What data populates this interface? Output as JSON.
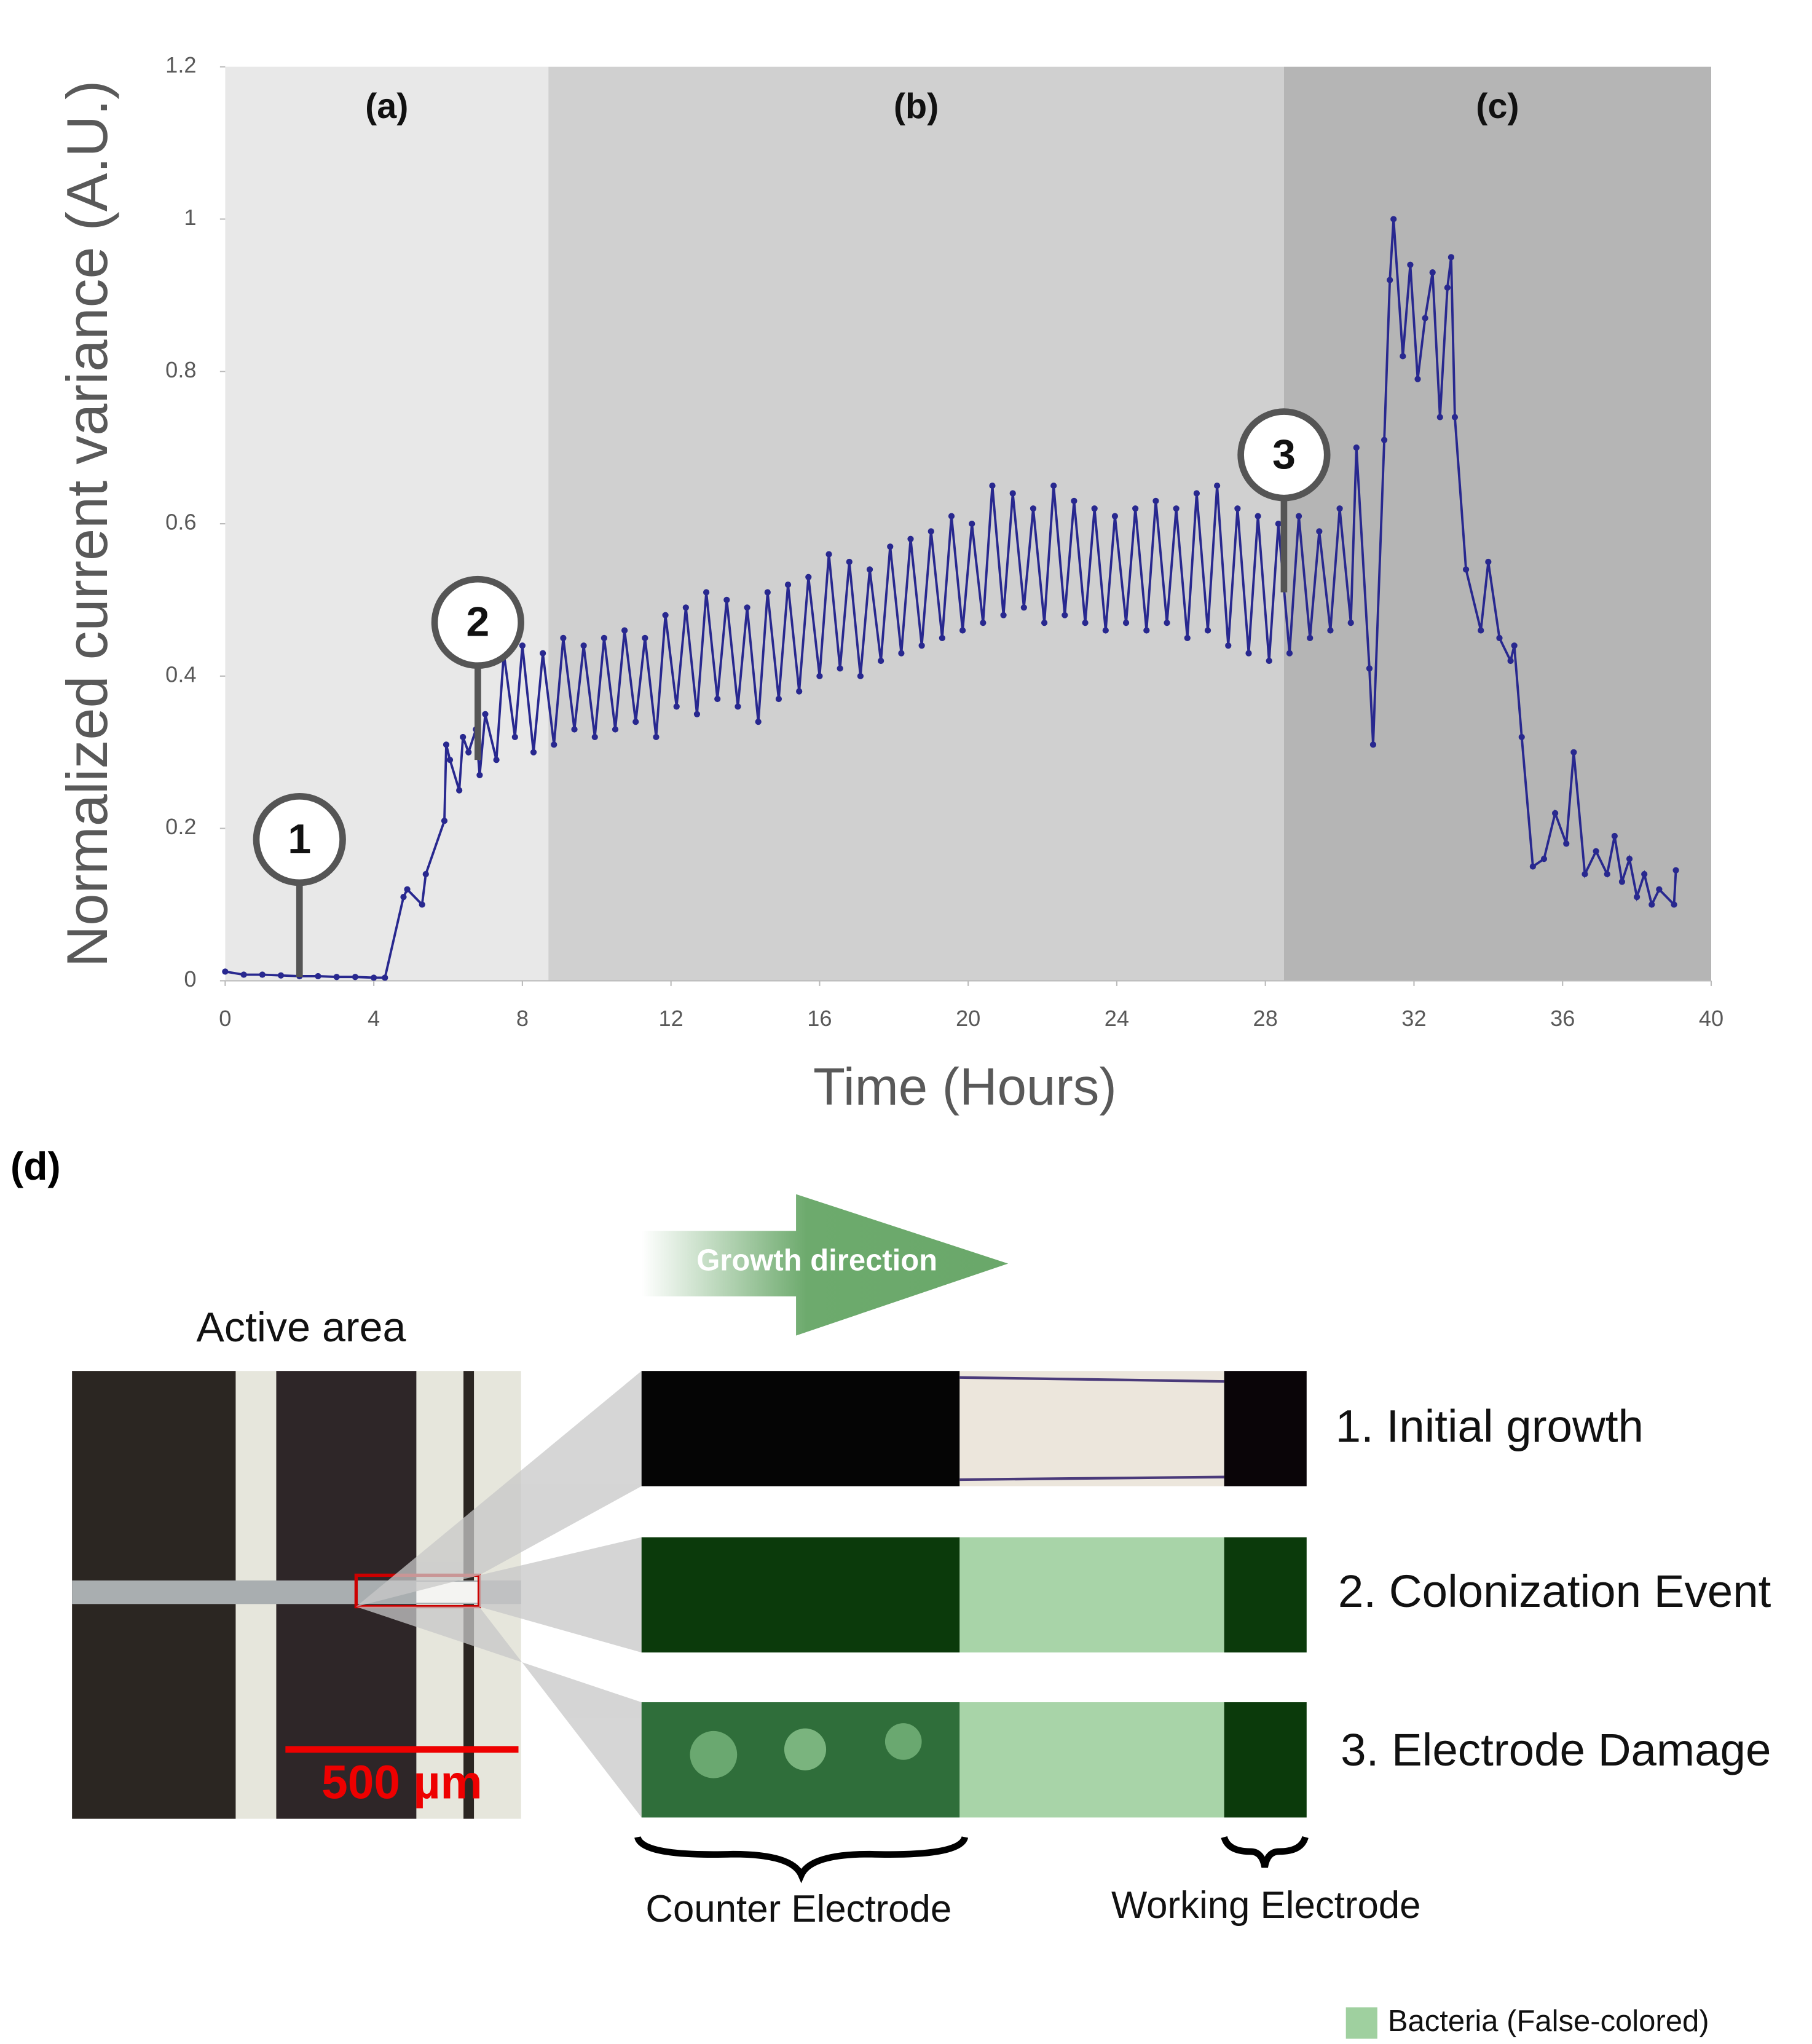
{
  "chart_data": {
    "type": "line",
    "x_label": "Time (Hours)",
    "y_label": "Normalized current variance (A.U.)",
    "xlim": [
      0,
      40
    ],
    "xticks": [
      0,
      4,
      8,
      12,
      16,
      20,
      24,
      28,
      32,
      36,
      40
    ],
    "ylim": [
      0,
      1.2
    ],
    "yticks": [
      0,
      0.2,
      0.4,
      0.6,
      0.8,
      1,
      1.2
    ],
    "regions": [
      {
        "label": "(a)",
        "x0": 0,
        "x1": 8.7,
        "color": "#e8e8e8"
      },
      {
        "label": "(b)",
        "x0": 8.7,
        "x1": 28.5,
        "color": "#d0d0d0"
      },
      {
        "label": "(c)",
        "x0": 28.5,
        "x1": 40,
        "color": "#b5b5b5"
      }
    ],
    "annotations": [
      {
        "label": "1",
        "x": 2,
        "y": 0.005
      },
      {
        "label": "2",
        "x": 6.8,
        "y": 0.29
      },
      {
        "label": "3",
        "x": 28.5,
        "y": 0.51
      }
    ],
    "x": [
      0,
      0.5,
      1,
      1.5,
      2,
      2.5,
      3,
      3.5,
      4,
      4.3,
      4.8,
      4.9,
      5.3,
      5.4,
      5.9,
      5.95,
      6.05,
      6.3,
      6.4,
      6.55,
      6.75,
      6.85,
      7.0,
      7.3,
      7.5,
      7.8,
      8.0,
      8.3,
      8.55,
      8.85,
      9.1,
      9.4,
      9.65,
      9.95,
      10.2,
      10.5,
      10.75,
      11.05,
      11.3,
      11.6,
      11.85,
      12.15,
      12.4,
      12.7,
      12.95,
      13.25,
      13.5,
      13.8,
      14.05,
      14.35,
      14.6,
      14.9,
      15.15,
      15.45,
      15.7,
      16.0,
      16.25,
      16.55,
      16.8,
      17.1,
      17.35,
      17.65,
      17.9,
      18.2,
      18.45,
      18.75,
      19.0,
      19.3,
      19.55,
      19.85,
      20.1,
      20.4,
      20.65,
      20.95,
      21.2,
      21.5,
      21.75,
      22.05,
      22.3,
      22.6,
      22.85,
      23.15,
      23.4,
      23.7,
      23.95,
      24.25,
      24.5,
      24.8,
      25.05,
      25.35,
      25.6,
      25.9,
      26.15,
      26.45,
      26.7,
      27.0,
      27.25,
      27.55,
      27.8,
      28.1,
      28.35,
      28.65,
      28.9,
      29.2,
      29.45,
      29.75,
      30.0,
      30.3,
      30.45,
      30.8,
      30.9,
      31.2,
      31.35,
      31.45,
      31.7,
      31.9,
      32.1,
      32.3,
      32.5,
      32.7,
      32.9,
      33.0,
      33.1,
      33.4,
      33.8,
      34.0,
      34.3,
      34.6,
      34.7,
      34.9,
      35.2,
      35.5,
      35.8,
      36.1,
      36.3,
      36.6,
      36.9,
      37.2,
      37.4,
      37.6,
      37.8,
      38.0,
      38.2,
      38.4,
      38.6,
      39.0,
      39.05
    ],
    "series": [
      {
        "color": "#28288f",
        "values": [
          0.012,
          0.008,
          0.008,
          0.007,
          0.006,
          0.006,
          0.005,
          0.005,
          0.004,
          0.004,
          0.11,
          0.12,
          0.1,
          0.14,
          0.21,
          0.31,
          0.29,
          0.25,
          0.32,
          0.3,
          0.33,
          0.27,
          0.35,
          0.29,
          0.43,
          0.32,
          0.44,
          0.3,
          0.43,
          0.31,
          0.45,
          0.33,
          0.44,
          0.32,
          0.45,
          0.33,
          0.46,
          0.34,
          0.45,
          0.32,
          0.48,
          0.36,
          0.49,
          0.35,
          0.51,
          0.37,
          0.5,
          0.36,
          0.49,
          0.34,
          0.51,
          0.37,
          0.52,
          0.38,
          0.53,
          0.4,
          0.56,
          0.41,
          0.55,
          0.4,
          0.54,
          0.42,
          0.57,
          0.43,
          0.58,
          0.44,
          0.59,
          0.45,
          0.61,
          0.46,
          0.6,
          0.47,
          0.65,
          0.48,
          0.64,
          0.49,
          0.62,
          0.47,
          0.65,
          0.48,
          0.63,
          0.47,
          0.62,
          0.46,
          0.61,
          0.47,
          0.62,
          0.46,
          0.63,
          0.47,
          0.62,
          0.45,
          0.64,
          0.46,
          0.65,
          0.44,
          0.62,
          0.43,
          0.61,
          0.42,
          0.6,
          0.43,
          0.61,
          0.45,
          0.59,
          0.46,
          0.62,
          0.47,
          0.7,
          0.41,
          0.31,
          0.71,
          0.92,
          1.0,
          0.82,
          0.94,
          0.79,
          0.87,
          0.93,
          0.74,
          0.91,
          0.95,
          0.74,
          0.54,
          0.46,
          0.55,
          0.45,
          0.42,
          0.44,
          0.32,
          0.15,
          0.16,
          0.22,
          0.18,
          0.3,
          0.14,
          0.17,
          0.14,
          0.19,
          0.13,
          0.16,
          0.11,
          0.14,
          0.1,
          0.12,
          0.1,
          0.145
        ]
      }
    ]
  },
  "panel_d": {
    "label": "(d)",
    "arrow_label": "Growth direction",
    "photo_title": "Active area",
    "scale_bar": "500 µm",
    "rows": [
      "1. Initial growth",
      "2. Colonization Event",
      "3. Electrode Damage"
    ],
    "electrodes": [
      "Counter Electrode",
      "Working Electrode"
    ],
    "legend": "Bacteria (False-colored)"
  }
}
